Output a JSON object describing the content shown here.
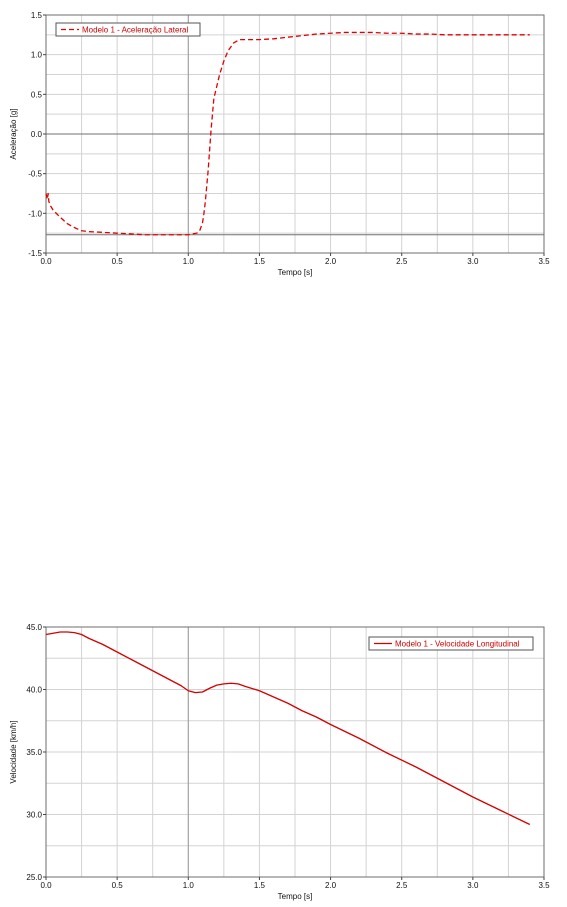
{
  "chart_data": [
    {
      "type": "line",
      "xlabel": "Tempo [s]",
      "ylabel": "Aceleração [g]",
      "xlim": [
        0.0,
        3.5
      ],
      "ylim": [
        -1.5,
        1.5
      ],
      "xticks": [
        0.0,
        0.5,
        1.0,
        1.5,
        2.0,
        2.5,
        3.0,
        3.5
      ],
      "xtick_labels": [
        "0.0",
        "0.5",
        "1.0",
        "1.5",
        "2.0",
        "2.5",
        "3.0",
        "3.5"
      ],
      "yticks": [
        -1.5,
        -1.0,
        -0.5,
        0.0,
        0.5,
        1.0,
        1.5
      ],
      "ytick_labels": [
        "-1.5",
        "-1.0",
        "-0.5",
        "0.0",
        "0.5",
        "1.0",
        "1.5"
      ],
      "grid": true,
      "legend_position": "top-left",
      "reference_lines": [
        {
          "axis": "y",
          "value": 0.0
        },
        {
          "axis": "y",
          "value": -1.27
        },
        {
          "axis": "x",
          "value": 1.0
        }
      ],
      "series": [
        {
          "name": "Modelo 1 - Aceleração Lateral",
          "color": "#e00000",
          "style": "dashed",
          "x": [
            0.0,
            0.01,
            0.015,
            0.02,
            0.03,
            0.05,
            0.1,
            0.15,
            0.2,
            0.25,
            0.3,
            0.4,
            0.5,
            0.6,
            0.7,
            0.8,
            0.9,
            1.0,
            1.03,
            1.06,
            1.08,
            1.1,
            1.11,
            1.12,
            1.13,
            1.14,
            1.15,
            1.16,
            1.17,
            1.18,
            1.2,
            1.22,
            1.25,
            1.28,
            1.32,
            1.36,
            1.4,
            1.5,
            1.6,
            1.7,
            1.8,
            1.9,
            2.0,
            2.1,
            2.2,
            2.3,
            2.4,
            2.5,
            2.6,
            2.7,
            2.8,
            2.9,
            3.0,
            3.1,
            3.2,
            3.3,
            3.4
          ],
          "y": [
            -0.75,
            -0.82,
            -0.75,
            -0.85,
            -0.9,
            -0.96,
            -1.05,
            -1.13,
            -1.18,
            -1.22,
            -1.23,
            -1.24,
            -1.25,
            -1.26,
            -1.27,
            -1.27,
            -1.27,
            -1.27,
            -1.26,
            -1.25,
            -1.22,
            -1.12,
            -1.0,
            -0.85,
            -0.65,
            -0.45,
            -0.2,
            0.05,
            0.25,
            0.45,
            0.6,
            0.75,
            0.92,
            1.05,
            1.15,
            1.19,
            1.19,
            1.19,
            1.2,
            1.22,
            1.24,
            1.26,
            1.27,
            1.28,
            1.28,
            1.28,
            1.27,
            1.27,
            1.26,
            1.26,
            1.25,
            1.25,
            1.25,
            1.25,
            1.25,
            1.25,
            1.25
          ]
        }
      ]
    },
    {
      "type": "line",
      "xlabel": "Tempo [s]",
      "ylabel": "Velocidade [km/h]",
      "xlim": [
        0.0,
        3.5
      ],
      "ylim": [
        25.0,
        45.0
      ],
      "xticks": [
        0.0,
        0.5,
        1.0,
        1.5,
        2.0,
        2.5,
        3.0,
        3.5
      ],
      "xtick_labels": [
        "0.0",
        "0.5",
        "1.0",
        "1.5",
        "2.0",
        "2.5",
        "3.0",
        "3.5"
      ],
      "yticks": [
        25.0,
        30.0,
        35.0,
        40.0,
        45.0
      ],
      "ytick_labels": [
        "25.0",
        "30.0",
        "35.0",
        "40.0",
        "45.0"
      ],
      "grid": true,
      "legend_position": "top-right",
      "reference_lines": [
        {
          "axis": "x",
          "value": 1.0
        }
      ],
      "series": [
        {
          "name": "Modelo 1 - Velocidade Longitudinal",
          "color": "#d40000",
          "style": "solid",
          "x": [
            0.0,
            0.05,
            0.1,
            0.15,
            0.2,
            0.25,
            0.3,
            0.4,
            0.5,
            0.6,
            0.7,
            0.8,
            0.9,
            0.95,
            1.0,
            1.05,
            1.1,
            1.15,
            1.2,
            1.25,
            1.3,
            1.35,
            1.4,
            1.5,
            1.6,
            1.7,
            1.8,
            1.9,
            2.0,
            2.2,
            2.4,
            2.6,
            2.8,
            3.0,
            3.2,
            3.4
          ],
          "y": [
            44.4,
            44.5,
            44.6,
            44.6,
            44.55,
            44.4,
            44.1,
            43.6,
            43.0,
            42.4,
            41.8,
            41.2,
            40.6,
            40.3,
            39.9,
            39.75,
            39.8,
            40.1,
            40.35,
            40.45,
            40.5,
            40.45,
            40.25,
            39.9,
            39.4,
            38.9,
            38.3,
            37.8,
            37.2,
            36.1,
            34.9,
            33.8,
            32.6,
            31.4,
            30.3,
            29.2
          ]
        }
      ]
    }
  ]
}
